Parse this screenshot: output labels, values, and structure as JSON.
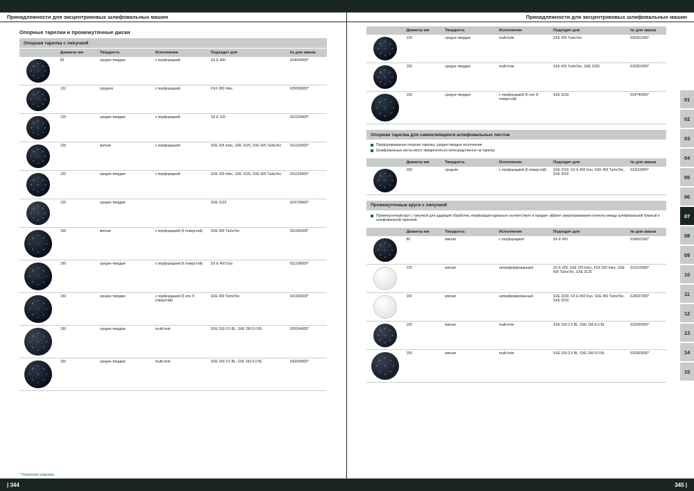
{
  "header_title": "Принадлежности для эксцентриковых шлифовальных машин",
  "section_title_left": "Опорные тарелки и промежуточные диски",
  "footnote": "* Розничная упаковка",
  "page_left_num": "| 344",
  "page_right_num": "345 |",
  "cols": {
    "img": "",
    "diameter": "Диаметр\nмм",
    "hardness": "Твердость",
    "execution": "Исполнение",
    "fits": "Подходит для",
    "order": "№ для заказа"
  },
  "groups_left": [
    {
      "title": "Опорная тарелка с липучкой",
      "rows": [
        {
          "disc": "dark",
          "d": "80",
          "h": "средне-твердая",
          "e": "с перфорацией",
          "f": "SX E 400",
          "o": "624064000*"
        },
        {
          "disc": "dark",
          "d": "122",
          "h": "средняя",
          "e": "с перфорацией",
          "f": "FSX 200 Intec",
          "o": "625658000*"
        },
        {
          "disc": "dark",
          "d": "125",
          "h": "средне-твердая",
          "e": "с перфорацией",
          "f": "SX E 125",
          "o": "631224000*"
        },
        {
          "disc": "dark",
          "d": "125",
          "h": "мягкая",
          "e": "с перфорацией",
          "f": "SXE 325 Intec, SXE 3125, SXE 425 TurboTec",
          "o": "631220000*"
        },
        {
          "disc": "dark",
          "d": "125",
          "h": "средне-твердая",
          "e": "с перфорацией",
          "f": "SXE 325 Intec, SXE 3125, SXE 425 TurboTec",
          "o": "631219000*"
        },
        {
          "disc": "mid",
          "d": "125",
          "h": "средне-твердая",
          "e": "",
          "f": "SXE 3125",
          "o": "624739000*"
        },
        {
          "disc": "dark lg",
          "d": "150",
          "h": "мягкая",
          "e": "с перфорацией (6 отверстий)",
          "f": "SXE 450 TurboTec",
          "o": "631156000*"
        },
        {
          "disc": "dark lg",
          "d": "150",
          "h": "средне-твердая",
          "e": "с перфорацией (6 отверстий)",
          "f": "SX E 450 Duo",
          "o": "631158000*"
        },
        {
          "disc": "dark lg",
          "d": "150",
          "h": "средне-твердая",
          "e": "с перфорацией (6 отв. 8 отверстий)",
          "f": "SXE 450 TurboTec",
          "o": "631150000*"
        },
        {
          "disc": "mid lg",
          "d": "150",
          "h": "средне-твердая",
          "e": "multi-hole",
          "f": "SXE 150-2.5 BL, SXE 150-5.0 BL",
          "o": "630264000*"
        },
        {
          "disc": "dark lg",
          "d": "150",
          "h": "средне-твердая",
          "e": "multi-hole",
          "f": "SXE 150-2.5 BL, SXE 150-5.0 BL",
          "o": "630259000*"
        }
      ]
    }
  ],
  "top_right": {
    "rows": [
      {
        "disc": "dark",
        "d": "125",
        "h": "средне-твердая",
        "e": "multi-hole",
        "f": "SXE 425 TurboTec",
        "o": "630261000*"
      },
      {
        "disc": "dark",
        "d": "150",
        "h": "средне-твердая",
        "e": "multi-hole",
        "f": "SXE 425 TurboTec, SXE 3150",
        "o": "630262000*"
      },
      {
        "disc": "dark lg",
        "d": "150",
        "h": "средне-твердая",
        "e": "с перфорацией (6 отв. 8 отверстий)",
        "f": "SXE 3150",
        "o": "624740000*"
      }
    ]
  },
  "groups_right": [
    {
      "title": "Опорная тарелка для самоклеящихся шлифовальных листов",
      "notes": [
        "Перфорированная опорная тарелка, средне-твердое исполнение",
        "Шлифовальные листы могут прикрепляться непосредственно на тарелку"
      ],
      "rows": [
        {
          "disc": "dark",
          "d": "150",
          "h": "средняя",
          "e": "с перфорацией (6 отверстий)",
          "f": "SXE 3150, SX E 450 Duo, SXE 450 TurboTec, SXE 3150",
          "o": "631169000*"
        }
      ]
    },
    {
      "title": "Промежуточные круги с липучкой",
      "notes": [
        "Промежуточный круг с липучкой для щадящей обработки, перфорация идеально соответствует и придает эффект амортизирования полноты между шлифовальной бумагой и шлифовальной тарелкой."
      ],
      "rows": [
        {
          "disc": "dark",
          "d": "80",
          "h": "мягкая",
          "e": "с перфорацией",
          "f": "SX E 400",
          "o": "624061000*"
        },
        {
          "disc": "white",
          "d": "125",
          "h": "мягкая",
          "e": "неперфорированный",
          "f": "SX E 425, SXE 325 Intec, FSX 200 Intec, SXE 425 TurboTec, SXE 3125",
          "o": "631216000*"
        },
        {
          "disc": "white",
          "d": "150",
          "h": "мягкая",
          "e": "неперфорированный",
          "f": "SXE 3150, SX E 450 Duo, SXE 450 TurboTec, SXE 3150",
          "o": "624037000*"
        },
        {
          "disc": "mid",
          "d": "150",
          "h": "мягкая",
          "e": "multi-hole",
          "f": "SXE 150-2.5 BL, SXE 150-5.0 BL",
          "o": "630260000*"
        },
        {
          "disc": "mid lg",
          "d": "150",
          "h": "мягкая",
          "e": "multi-hole",
          "f": "SXE 150-2.5 BL, SXE 150-5.0 BL",
          "o": "630263000*"
        }
      ]
    }
  ],
  "tabs": [
    "01",
    "02",
    "03",
    "04",
    "05",
    "06",
    "07",
    "08",
    "09",
    "10",
    "11",
    "12",
    "13",
    "14",
    "15"
  ],
  "active_tab": "07"
}
